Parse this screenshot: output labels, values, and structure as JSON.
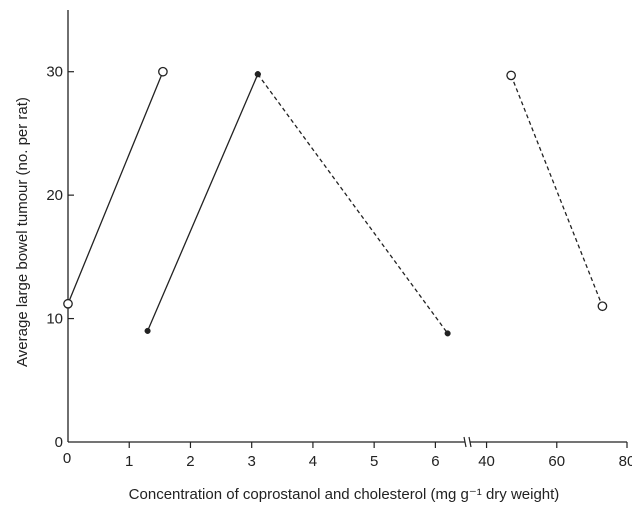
{
  "chart_data": {
    "type": "line",
    "title": "",
    "xlabel": "Concentration of coprostanol and cholesterol (mg g⁻¹ dry weight)",
    "ylabel": "Average large bowel tumour (no. per rat)",
    "x_segments": [
      {
        "range": [
          0,
          6.5
        ],
        "ticks": [
          1,
          2,
          3,
          4,
          5,
          6
        ]
      },
      {
        "range": [
          35,
          80
        ],
        "ticks": [
          40,
          60,
          80
        ]
      }
    ],
    "x_origin_label": "0",
    "ylim": [
      0,
      35
    ],
    "yticks": [
      0,
      10,
      20,
      30
    ],
    "grid": false,
    "series": [
      {
        "style": "solid",
        "marker": "open-circle",
        "points": [
          {
            "x": 0,
            "y": 11.2
          },
          {
            "x": 1.55,
            "y": 30
          }
        ]
      },
      {
        "style": "solid",
        "marker": "filled-dot",
        "points": [
          {
            "x": 1.3,
            "y": 9
          },
          {
            "x": 3.1,
            "y": 29.8
          }
        ]
      },
      {
        "style": "dashed",
        "marker": "filled-dot",
        "points": [
          {
            "x": 3.1,
            "y": 29.8
          },
          {
            "x": 6.2,
            "y": 8.8
          }
        ]
      },
      {
        "style": "dashed",
        "marker": "open-circle",
        "points": [
          {
            "x": 47,
            "y": 29.7
          },
          {
            "x": 73,
            "y": 11
          }
        ]
      }
    ]
  }
}
